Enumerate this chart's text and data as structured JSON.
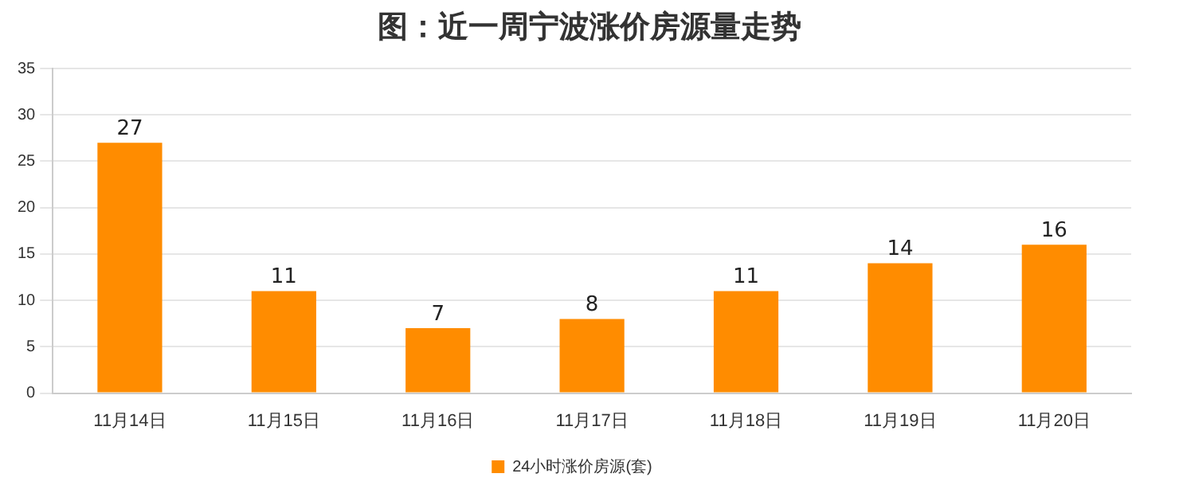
{
  "chart_data": {
    "type": "bar",
    "title": "图：近一周宁波涨价房源量走势",
    "categories": [
      "11月14日",
      "11月15日",
      "11月16日",
      "11月17日",
      "11月18日",
      "11月19日",
      "11月20日"
    ],
    "series": [
      {
        "name": "24小时涨价房源(套)",
        "color": "#ff8c00",
        "values": [
          27,
          11,
          7,
          8,
          11,
          14,
          16
        ]
      }
    ],
    "ylim": [
      0,
      35
    ],
    "yticks": [
      0,
      5,
      10,
      15,
      20,
      25,
      30,
      35
    ],
    "grid": "y",
    "legend": "bottom",
    "data_labels": true
  }
}
